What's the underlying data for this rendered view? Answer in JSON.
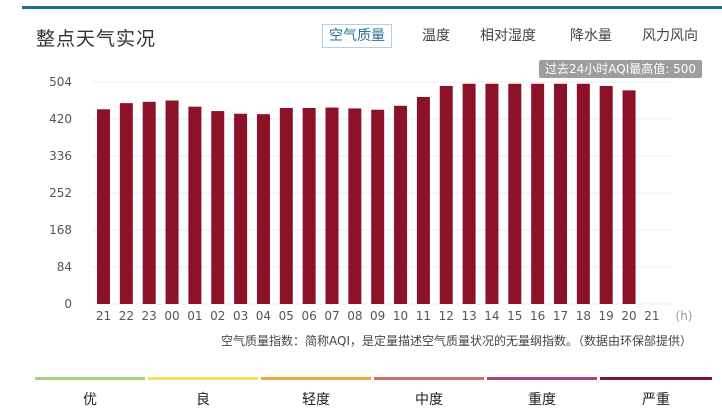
{
  "title": "整点天气实况",
  "tabs": [
    {
      "label": "空气质量",
      "active": true
    },
    {
      "label": "温度",
      "active": false
    },
    {
      "label": "相对湿度",
      "active": false
    },
    {
      "label": "降水量",
      "active": false
    },
    {
      "label": "风力风向",
      "active": false
    }
  ],
  "max_badge": "过去24小时AQI最高值: 500",
  "footnote": "空气质量指数：简称AQI，是定量描述空气质量状况的无量纲指数。（数据由环保部提供）",
  "legend": [
    {
      "label": "优",
      "color": "#a8cf7a"
    },
    {
      "label": "良",
      "color": "#f2e35a"
    },
    {
      "label": "轻度",
      "color": "#f1a73a"
    },
    {
      "label": "中度",
      "color": "#d96a72"
    },
    {
      "label": "重度",
      "color": "#a8417e"
    },
    {
      "label": "严重",
      "color": "#7a1430"
    }
  ],
  "chart_data": {
    "type": "bar",
    "bar_color": "#8b1228",
    "categories": [
      "21",
      "22",
      "23",
      "00",
      "01",
      "02",
      "03",
      "04",
      "05",
      "06",
      "07",
      "08",
      "09",
      "10",
      "11",
      "12",
      "13",
      "14",
      "15",
      "16",
      "17",
      "18",
      "19",
      "20",
      "21"
    ],
    "values": [
      442,
      456,
      459,
      462,
      448,
      438,
      432,
      431,
      445,
      445,
      446,
      444,
      441,
      450,
      470,
      495,
      500,
      500,
      500,
      500,
      500,
      500,
      495,
      485,
      null
    ],
    "xunit": "(h)",
    "ylim": [
      0,
      504
    ],
    "yticks": [
      0,
      84,
      168,
      252,
      336,
      420,
      504
    ],
    "grid": true
  }
}
